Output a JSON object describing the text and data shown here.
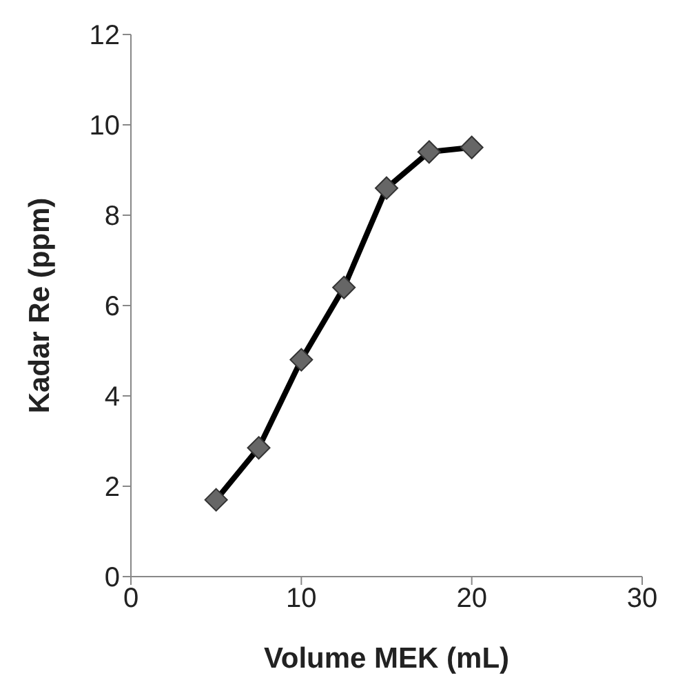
{
  "chart_data": {
    "type": "line",
    "xlabel": "Volume MEK (mL)",
    "ylabel": "Kadar Re (ppm)",
    "x": [
      5,
      7.5,
      10,
      12.5,
      15,
      17.5,
      20
    ],
    "series": [
      {
        "color": "#000000",
        "values": [
          1.7,
          2.85,
          4.8,
          6.4,
          8.6,
          9.4,
          9.5
        ]
      }
    ],
    "xlim": [
      0,
      30
    ],
    "xticks": [
      0,
      10,
      20,
      30
    ],
    "ylim": [
      0,
      12
    ],
    "yticks": [
      0,
      2,
      4,
      6,
      8,
      10,
      12
    ],
    "grid": false,
    "legend": false,
    "marker": "diamond",
    "line_style": "solid"
  }
}
